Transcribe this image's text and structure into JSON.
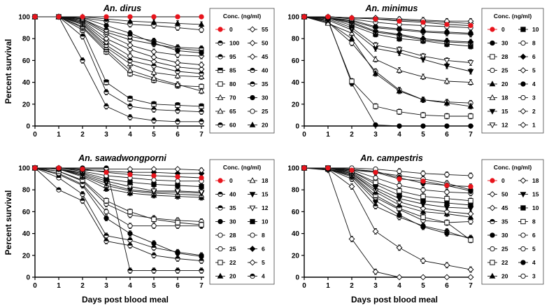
{
  "x_title": "Days post blood meal",
  "y_title": "Percent survival",
  "legend_title": "Conc. (ng/ml)",
  "chart_data": [
    {
      "type": "line",
      "title": "An. dirus",
      "x": [
        0,
        1,
        2,
        3,
        4,
        5,
        6,
        7
      ],
      "xlim": [
        0,
        7
      ],
      "ylim": [
        0,
        100
      ],
      "xlabel": "",
      "ylabel": "Percent survival",
      "legend_columns": [
        [
          "0",
          "100",
          "95",
          "85",
          "80",
          "70",
          "65",
          "60"
        ],
        [
          "55",
          "50",
          "45",
          "40",
          "35",
          "30",
          "25",
          "20"
        ]
      ],
      "series": [
        {
          "name": "0",
          "marker": "circle-red",
          "values": [
            100,
            100,
            100,
            100,
            100,
            100,
            100,
            100
          ]
        },
        {
          "name": "100",
          "marker": "circle-half",
          "values": [
            100,
            100,
            60,
            18,
            8,
            5,
            4,
            4
          ]
        },
        {
          "name": "95",
          "marker": "circle-half",
          "values": [
            100,
            100,
            82,
            31,
            18,
            15,
            14,
            13
          ]
        },
        {
          "name": "85",
          "marker": "square-half",
          "values": [
            100,
            100,
            88,
            40,
            25,
            20,
            19,
            18
          ]
        },
        {
          "name": "80",
          "marker": "square-open",
          "values": [
            100,
            100,
            90,
            68,
            48,
            42,
            37,
            36
          ]
        },
        {
          "name": "70",
          "marker": "triangle-open",
          "values": [
            100,
            100,
            91,
            70,
            51,
            44,
            38,
            32
          ]
        },
        {
          "name": "65",
          "marker": "triangle-open",
          "values": [
            100,
            100,
            93,
            72,
            57,
            49,
            46,
            45
          ]
        },
        {
          "name": "60",
          "marker": "circle-half",
          "values": [
            100,
            100,
            94,
            74,
            60,
            55,
            50,
            48
          ]
        },
        {
          "name": "55",
          "marker": "diamond-open",
          "values": [
            100,
            100,
            95,
            77,
            64,
            59,
            54,
            52
          ]
        },
        {
          "name": "50",
          "marker": "diamond-open",
          "values": [
            100,
            100,
            96,
            80,
            70,
            63,
            58,
            56
          ]
        },
        {
          "name": "45",
          "marker": "diamond-open",
          "values": [
            100,
            100,
            97,
            84,
            74,
            68,
            65,
            64
          ]
        },
        {
          "name": "40",
          "marker": "circle-half",
          "values": [
            100,
            100,
            98,
            86,
            79,
            75,
            71,
            69
          ]
        },
        {
          "name": "35",
          "marker": "circle-half",
          "values": [
            100,
            100,
            98,
            88,
            82,
            78,
            72,
            71
          ]
        },
        {
          "name": "30",
          "marker": "circle-filled",
          "values": [
            100,
            100,
            99,
            92,
            85,
            76,
            69,
            67
          ]
        },
        {
          "name": "25",
          "marker": "circle-open",
          "values": [
            100,
            100,
            99,
            96,
            93,
            92,
            90,
            88
          ]
        },
        {
          "name": "20",
          "marker": "triangle-filled",
          "values": [
            100,
            100,
            100,
            98,
            96,
            95,
            94,
            93
          ]
        }
      ]
    },
    {
      "type": "line",
      "title": "An. minimus",
      "x": [
        0,
        1,
        2,
        3,
        4,
        5,
        6,
        7
      ],
      "xlim": [
        0,
        7
      ],
      "ylim": [
        0,
        100
      ],
      "xlabel": "",
      "ylabel": "",
      "legend_columns": [
        [
          "0",
          "30",
          "28",
          "25",
          "20",
          "18",
          "15",
          "12"
        ],
        [
          "10",
          "8",
          "6",
          "5",
          "4",
          "3",
          "2",
          "1"
        ]
      ],
      "series": [
        {
          "name": "0",
          "marker": "circle-red",
          "values": [
            100,
            100,
            99,
            98,
            96,
            95,
            93,
            92
          ]
        },
        {
          "name": "30",
          "marker": "circle-filled",
          "values": [
            100,
            97,
            39,
            1,
            0,
            0,
            0,
            0
          ]
        },
        {
          "name": "28",
          "marker": "square-open",
          "values": [
            100,
            96,
            41,
            18,
            13,
            10,
            9,
            9
          ]
        },
        {
          "name": "25",
          "marker": "circle-open",
          "values": [
            100,
            95,
            76,
            50,
            33,
            24,
            22,
            21
          ]
        },
        {
          "name": "20",
          "marker": "triangle-filled",
          "values": [
            100,
            95,
            80,
            48,
            32,
            24,
            21,
            18
          ]
        },
        {
          "name": "18",
          "marker": "triangle-open",
          "values": [
            100,
            94,
            85,
            61,
            51,
            45,
            41,
            40
          ]
        },
        {
          "name": "15",
          "marker": "triangle-down-filled",
          "values": [
            100,
            97,
            88,
            71,
            67,
            61,
            55,
            50
          ]
        },
        {
          "name": "12",
          "marker": "triangle-down-open",
          "values": [
            100,
            98,
            90,
            74,
            70,
            64,
            60,
            58
          ]
        },
        {
          "name": "10",
          "marker": "square-filled",
          "values": [
            100,
            99,
            92,
            84,
            80,
            78,
            75,
            73
          ]
        },
        {
          "name": "8",
          "marker": "circle-open",
          "values": [
            100,
            99,
            94,
            86,
            83,
            79,
            77,
            76
          ]
        },
        {
          "name": "6",
          "marker": "diamond-filled",
          "values": [
            100,
            99,
            95,
            87,
            84,
            80,
            78,
            77
          ]
        },
        {
          "name": "5",
          "marker": "diamond-open",
          "values": [
            100,
            99,
            96,
            90,
            88,
            86,
            85,
            84
          ]
        },
        {
          "name": "4",
          "marker": "circle-filled",
          "values": [
            100,
            99,
            97,
            91,
            89,
            87,
            86,
            85
          ]
        },
        {
          "name": "3",
          "marker": "circle-open",
          "values": [
            100,
            100,
            98,
            95,
            93,
            92,
            91,
            90
          ]
        },
        {
          "name": "2",
          "marker": "diamond-open",
          "values": [
            100,
            100,
            99,
            98,
            97,
            96,
            95,
            94
          ]
        },
        {
          "name": "1",
          "marker": "diamond-open",
          "values": [
            100,
            100,
            99,
            99,
            98,
            97,
            96,
            96
          ]
        }
      ]
    },
    {
      "type": "line",
      "title": "An. sawadwongporni",
      "x": [
        0,
        1,
        2,
        3,
        4,
        5,
        6,
        7
      ],
      "xlim": [
        0,
        7
      ],
      "ylim": [
        0,
        100
      ],
      "xlabel": "Days post blood meal",
      "ylabel": "Percent survival",
      "legend_columns": [
        [
          "0",
          "40",
          "35",
          "30",
          "28",
          "25",
          "22",
          "20"
        ],
        [
          "18",
          "15",
          "12",
          "10",
          "8",
          "6",
          "5",
          "4"
        ]
      ],
      "series": [
        {
          "name": "0",
          "marker": "circle-red",
          "values": [
            100,
            100,
            99,
            96,
            94,
            93,
            92,
            91
          ]
        },
        {
          "name": "40",
          "marker": "circle-half",
          "values": [
            100,
            80,
            70,
            33,
            29,
            20,
            17,
            15
          ]
        },
        {
          "name": "35",
          "marker": "circle-half",
          "values": [
            100,
            91,
            76,
            38,
            34,
            27,
            23,
            20
          ]
        },
        {
          "name": "30",
          "marker": "circle-filled",
          "values": [
            100,
            94,
            84,
            54,
            40,
            31,
            22,
            19
          ]
        },
        {
          "name": "28",
          "marker": "circle-open",
          "values": [
            100,
            95,
            85,
            60,
            47,
            47,
            47,
            47
          ]
        },
        {
          "name": "25",
          "marker": "circle-open",
          "values": [
            100,
            97,
            88,
            67,
            57,
            54,
            52,
            51
          ]
        },
        {
          "name": "22",
          "marker": "square-open",
          "values": [
            100,
            97,
            89,
            70,
            60,
            53,
            50,
            48
          ]
        },
        {
          "name": "20",
          "marker": "triangle-filled",
          "values": [
            100,
            99,
            92,
            81,
            77,
            75,
            74,
            73
          ]
        },
        {
          "name": "18",
          "marker": "triangle-open",
          "values": [
            100,
            99,
            93,
            84,
            79,
            77,
            76,
            75
          ]
        },
        {
          "name": "15",
          "marker": "triangle-down-filled",
          "values": [
            100,
            99,
            94,
            86,
            80,
            78,
            78,
            77
          ]
        },
        {
          "name": "12",
          "marker": "triangle-down-open",
          "values": [
            100,
            99,
            95,
            88,
            83,
            79,
            79,
            78
          ]
        },
        {
          "name": "10",
          "marker": "square-filled",
          "values": [
            100,
            99,
            96,
            90,
            87,
            85,
            84,
            83
          ]
        },
        {
          "name": "8",
          "marker": "circle-open",
          "values": [
            100,
            100,
            97,
            93,
            91,
            89,
            88,
            88
          ]
        },
        {
          "name": "6",
          "marker": "diamond-filled",
          "values": [
            100,
            100,
            98,
            97,
            96,
            96,
            95,
            95
          ]
        },
        {
          "name": "5",
          "marker": "diamond-open",
          "values": [
            100,
            100,
            99,
            99,
            99,
            99,
            99,
            98
          ]
        },
        {
          "name": "4",
          "marker": "circle-half",
          "values": [
            100,
            100,
            100,
            100,
            6,
            6,
            6,
            6
          ]
        }
      ]
    },
    {
      "type": "line",
      "title": "An. campestris",
      "x": [
        0,
        1,
        2,
        3,
        4,
        5,
        6,
        7
      ],
      "xlim": [
        0,
        7
      ],
      "ylim": [
        0,
        100
      ],
      "xlabel": "Days post blood meal",
      "ylabel": "",
      "legend_columns": [
        [
          "0",
          "50",
          "45",
          "35",
          "30",
          "25",
          "22",
          "20"
        ],
        [
          "18",
          "15",
          "10",
          "8",
          "6",
          "5",
          "4",
          "3"
        ]
      ],
      "series": [
        {
          "name": "0",
          "marker": "circle-red",
          "values": [
            100,
            100,
            98,
            96,
            90,
            88,
            84,
            83
          ]
        },
        {
          "name": "50",
          "marker": "diamond-open",
          "values": [
            100,
            98,
            35,
            5,
            0,
            0,
            0,
            0
          ]
        },
        {
          "name": "45",
          "marker": "diamond-open",
          "values": [
            100,
            99,
            83,
            42,
            27,
            15,
            11,
            7
          ]
        },
        {
          "name": "35",
          "marker": "circle-half",
          "values": [
            100,
            99,
            90,
            65,
            55,
            47,
            42,
            35
          ]
        },
        {
          "name": "30",
          "marker": "circle-filled",
          "values": [
            100,
            99,
            92,
            70,
            57,
            46,
            40,
            36
          ]
        },
        {
          "name": "25",
          "marker": "circle-open",
          "values": [
            100,
            99,
            93,
            73,
            62,
            52,
            50,
            51
          ]
        },
        {
          "name": "22",
          "marker": "square-open",
          "values": [
            100,
            99,
            94,
            75,
            63,
            55,
            50,
            34
          ]
        },
        {
          "name": "20",
          "marker": "triangle-filled",
          "values": [
            100,
            99,
            95,
            78,
            66,
            60,
            58,
            55
          ]
        },
        {
          "name": "18",
          "marker": "diamond-open",
          "values": [
            100,
            100,
            95,
            80,
            69,
            63,
            60,
            58
          ]
        },
        {
          "name": "15",
          "marker": "triangle-down-filled",
          "values": [
            100,
            100,
            96,
            82,
            72,
            67,
            64,
            63
          ]
        },
        {
          "name": "10",
          "marker": "square-filled",
          "values": [
            100,
            100,
            97,
            85,
            75,
            70,
            68,
            66
          ]
        },
        {
          "name": "8",
          "marker": "square-open",
          "values": [
            100,
            100,
            97,
            87,
            79,
            74,
            72,
            70
          ]
        },
        {
          "name": "6",
          "marker": "circle-open",
          "values": [
            100,
            100,
            98,
            91,
            84,
            80,
            78,
            77
          ]
        },
        {
          "name": "5",
          "marker": "circle-open",
          "values": [
            100,
            100,
            99,
            96,
            93,
            90,
            86,
            80
          ]
        },
        {
          "name": "4",
          "marker": "circle-filled",
          "values": [
            100,
            100,
            99,
            97,
            91,
            86,
            84,
            79
          ]
        },
        {
          "name": "3",
          "marker": "circle-open",
          "values": [
            100,
            100,
            100,
            99,
            97,
            95,
            94,
            93
          ]
        }
      ]
    }
  ]
}
